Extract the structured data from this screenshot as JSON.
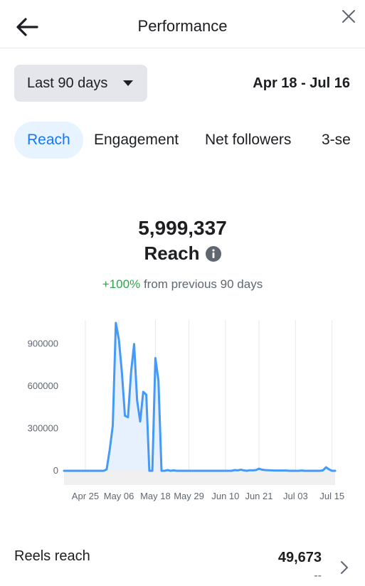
{
  "header": {
    "title": "Performance",
    "back_icon": "arrow-left-icon",
    "close_icon": "close-icon"
  },
  "filters": {
    "range_label": "Last 90 days",
    "date_range": "Apr 18 - Jul 16"
  },
  "tabs": [
    {
      "label": "Reach",
      "active": true
    },
    {
      "label": "Engagement",
      "active": false
    },
    {
      "label": "Net followers",
      "active": false
    },
    {
      "label": "3-se",
      "active": false
    }
  ],
  "metric": {
    "value": "5,999,337",
    "label": "Reach",
    "change": "+100%",
    "change_suffix": "from previous 90 days"
  },
  "colors": {
    "accent": "#1877f2",
    "line": "#4599f7",
    "area": "#e7f1fd",
    "positive": "#31a24c"
  },
  "chart_data": {
    "type": "area",
    "title": "",
    "xlabel": "",
    "ylabel": "",
    "x_ticks": [
      "Apr 25",
      "May 06",
      "May 18",
      "May 29",
      "Jun 10",
      "Jun 21",
      "Jul 03",
      "Jul 15"
    ],
    "y_ticks": [
      0,
      300000,
      600000,
      900000
    ],
    "ylim": [
      0,
      1070000
    ],
    "grid": true,
    "x": [
      "Apr 18",
      "Apr 19",
      "Apr 20",
      "Apr 21",
      "Apr 22",
      "Apr 23",
      "Apr 24",
      "Apr 25",
      "Apr 26",
      "Apr 27",
      "Apr 28",
      "Apr 29",
      "Apr 30",
      "May 01",
      "May 02",
      "May 03",
      "May 04",
      "May 05",
      "May 06",
      "May 07",
      "May 08",
      "May 09",
      "May 10",
      "May 11",
      "May 12",
      "May 13",
      "May 14",
      "May 15",
      "May 16",
      "May 17",
      "May 18",
      "May 19",
      "May 20",
      "May 21",
      "May 22",
      "May 23",
      "May 24",
      "May 25",
      "May 26",
      "May 27",
      "May 28",
      "May 29",
      "May 30",
      "May 31",
      "Jun 01",
      "Jun 02",
      "Jun 03",
      "Jun 04",
      "Jun 05",
      "Jun 06",
      "Jun 07",
      "Jun 08",
      "Jun 09",
      "Jun 10",
      "Jun 11",
      "Jun 12",
      "Jun 13",
      "Jun 14",
      "Jun 15",
      "Jun 16",
      "Jun 17",
      "Jun 18",
      "Jun 19",
      "Jun 20",
      "Jun 21",
      "Jun 22",
      "Jun 23",
      "Jun 24",
      "Jun 25",
      "Jun 26",
      "Jun 27",
      "Jun 28",
      "Jun 29",
      "Jun 30",
      "Jul 01",
      "Jul 02",
      "Jul 03",
      "Jul 04",
      "Jul 05",
      "Jul 06",
      "Jul 07",
      "Jul 08",
      "Jul 09",
      "Jul 10",
      "Jul 11",
      "Jul 12",
      "Jul 13",
      "Jul 14",
      "Jul 15",
      "Jul 16"
    ],
    "series": [
      {
        "values": [
          0,
          0,
          0,
          0,
          0,
          0,
          0,
          0,
          0,
          0,
          0,
          0,
          0,
          0,
          10000,
          150000,
          320000,
          1050000,
          930000,
          700000,
          390000,
          380000,
          700000,
          900000,
          500000,
          350000,
          560000,
          540000,
          0,
          0,
          800000,
          640000,
          0,
          0,
          5000,
          0,
          3000,
          0,
          0,
          0,
          0,
          0,
          0,
          0,
          0,
          0,
          0,
          0,
          0,
          0,
          0,
          0,
          0,
          0,
          0,
          0,
          5000,
          3000,
          8000,
          3000,
          0,
          4000,
          3000,
          5000,
          15000,
          8000,
          5000,
          4000,
          3000,
          2000,
          2000,
          2000,
          2000,
          2000,
          0,
          0,
          0,
          0,
          2000,
          0,
          0,
          0,
          0,
          0,
          0,
          3000,
          25000,
          10000,
          0,
          0
        ]
      }
    ]
  },
  "reels": {
    "label": "Reels reach",
    "value": "49,673",
    "sub": "--",
    "chevron_icon": "chevron-right-icon"
  }
}
